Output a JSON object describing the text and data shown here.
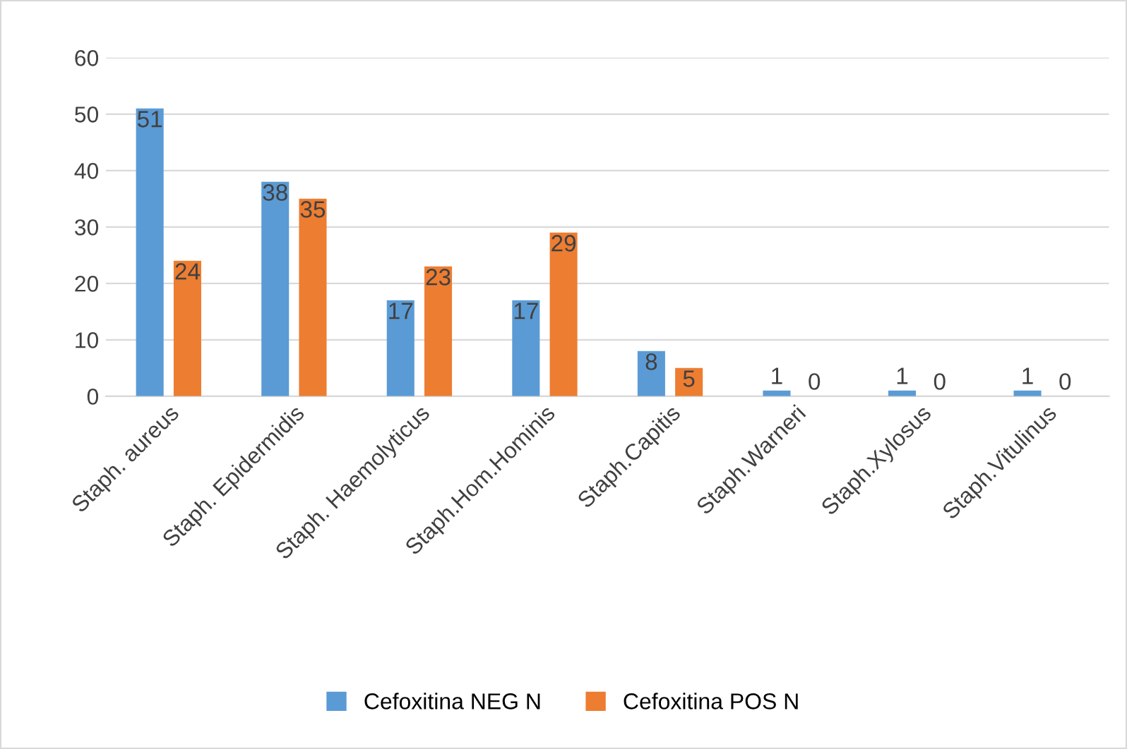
{
  "chart_data": {
    "type": "bar",
    "categories": [
      "Staph. aureus",
      "Staph. Epidermidis",
      "Staph. Haemolyticus",
      "Staph.Hom.Hominis",
      "Staph.Capitis",
      "Staph.Warneri",
      "Staph.Xylosus",
      "Staph.Vitulinus"
    ],
    "series": [
      {
        "name": "Cefoxitina NEG N",
        "color": "#5b9bd5",
        "values": [
          51,
          38,
          17,
          17,
          8,
          1,
          1,
          1
        ]
      },
      {
        "name": "Cefoxitina POS N",
        "color": "#ed7d31",
        "values": [
          24,
          35,
          23,
          29,
          5,
          0,
          0,
          0
        ]
      }
    ],
    "ylim": [
      0,
      60
    ],
    "yticks": [
      0,
      10,
      20,
      30,
      40,
      50,
      60
    ],
    "grid": "y",
    "legend": "bottom",
    "data_labels": true
  }
}
